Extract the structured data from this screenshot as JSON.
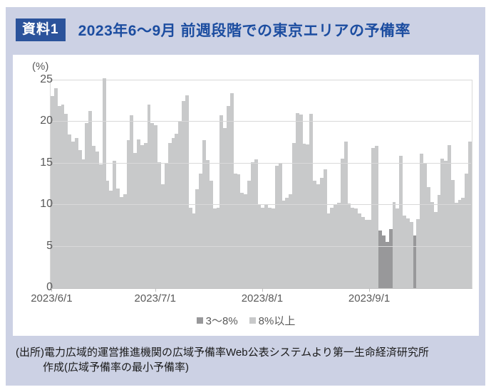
{
  "header": {
    "badge": "資料1",
    "title": "2023年6～9月 前週段階での東京エリアの予備率"
  },
  "chart_data": {
    "type": "bar",
    "title": "2023年6～9月 前週段階での東京エリアの予備率",
    "ylabel": "(%)",
    "y_axis": {
      "unit_label": "(%)",
      "ticks": [
        0,
        5,
        10,
        15,
        20,
        25
      ],
      "min": 0,
      "max": 25
    },
    "x_axis": {
      "tick_labels": [
        "2023/6/1",
        "2023/7/1",
        "2023/8/1",
        "2023/9/1"
      ],
      "tick_day_indices": [
        0,
        30,
        61,
        92
      ]
    },
    "legend": [
      {
        "label": "3～8%",
        "color": "#98989a"
      },
      {
        "label": "8%以上",
        "color": "#c8c9ca"
      }
    ],
    "grid": true,
    "dates": [
      "2023/6/1",
      "2023/6/2",
      "2023/6/3",
      "2023/6/4",
      "2023/6/5",
      "2023/6/6",
      "2023/6/7",
      "2023/6/8",
      "2023/6/9",
      "2023/6/10",
      "2023/6/11",
      "2023/6/12",
      "2023/6/13",
      "2023/6/14",
      "2023/6/15",
      "2023/6/16",
      "2023/6/17",
      "2023/6/18",
      "2023/6/19",
      "2023/6/20",
      "2023/6/21",
      "2023/6/22",
      "2023/6/23",
      "2023/6/24",
      "2023/6/25",
      "2023/6/26",
      "2023/6/27",
      "2023/6/28",
      "2023/6/29",
      "2023/6/30",
      "2023/7/1",
      "2023/7/2",
      "2023/7/3",
      "2023/7/4",
      "2023/7/5",
      "2023/7/6",
      "2023/7/7",
      "2023/7/8",
      "2023/7/9",
      "2023/7/10",
      "2023/7/11",
      "2023/7/12",
      "2023/7/13",
      "2023/7/14",
      "2023/7/15",
      "2023/7/16",
      "2023/7/17",
      "2023/7/18",
      "2023/7/19",
      "2023/7/20",
      "2023/7/21",
      "2023/7/22",
      "2023/7/23",
      "2023/7/24",
      "2023/7/25",
      "2023/7/26",
      "2023/7/27",
      "2023/7/28",
      "2023/7/29",
      "2023/7/30",
      "2023/7/31",
      "2023/8/1",
      "2023/8/2",
      "2023/8/3",
      "2023/8/4",
      "2023/8/5",
      "2023/8/6",
      "2023/8/7",
      "2023/8/8",
      "2023/8/9",
      "2023/8/10",
      "2023/8/11",
      "2023/8/12",
      "2023/8/13",
      "2023/8/14",
      "2023/8/15",
      "2023/8/16",
      "2023/8/17",
      "2023/8/18",
      "2023/8/19",
      "2023/8/20",
      "2023/8/21",
      "2023/8/22",
      "2023/8/23",
      "2023/8/24",
      "2023/8/25",
      "2023/8/26",
      "2023/8/27",
      "2023/8/28",
      "2023/8/29",
      "2023/8/30",
      "2023/8/31",
      "2023/9/1",
      "2023/9/2",
      "2023/9/3",
      "2023/9/4",
      "2023/9/5",
      "2023/9/6",
      "2023/9/7",
      "2023/9/8",
      "2023/9/9",
      "2023/9/10",
      "2023/9/11",
      "2023/9/12",
      "2023/9/13",
      "2023/9/14",
      "2023/9/15",
      "2023/9/16",
      "2023/9/17",
      "2023/9/18",
      "2023/9/19",
      "2023/9/20",
      "2023/9/21",
      "2023/9/22",
      "2023/9/23",
      "2023/9/24",
      "2023/9/25",
      "2023/9/26",
      "2023/9/27",
      "2023/9/28",
      "2023/9/29",
      "2023/9/30"
    ],
    "values": [
      23.1,
      24.1,
      21.9,
      22.1,
      21.0,
      18.5,
      17.6,
      18.1,
      16.6,
      15.5,
      19.9,
      21.3,
      17.1,
      16.4,
      14.9,
      25.3,
      12.9,
      11.7,
      15.3,
      12.0,
      11.0,
      11.3,
      17.8,
      20.8,
      16.3,
      17.9,
      17.2,
      17.5,
      22.1,
      19.9,
      19.6,
      15.2,
      12.5,
      15.1,
      17.5,
      18.1,
      18.6,
      20.1,
      22.5,
      23.2,
      9.7,
      9.0,
      11.9,
      13.8,
      17.8,
      15.4,
      12.9,
      9.6,
      9.7,
      20.8,
      19.3,
      21.9,
      23.5,
      13.8,
      13.7,
      11.5,
      11.3,
      12.9,
      15.2,
      15.5,
      10.0,
      9.7,
      10.0,
      9.7,
      9.6,
      14.7,
      15.0,
      10.5,
      10.9,
      11.3,
      17.5,
      21.1,
      20.9,
      17.4,
      17.3,
      21.0,
      12.9,
      12.5,
      13.3,
      14.3,
      9.0,
      9.7,
      10.0,
      10.3,
      15.6,
      17.6,
      10.2,
      9.7,
      9.6,
      9.0,
      8.6,
      8.2,
      8.2,
      16.9,
      17.1,
      6.9,
      6.3,
      5.6,
      7.1,
      10.4,
      9.6,
      15.9,
      8.7,
      8.4,
      8.0,
      6.3,
      8.3,
      16.2,
      15.0,
      12.2,
      10.4,
      9.2,
      11.2,
      15.6,
      15.3,
      17.2,
      13.0,
      10.3,
      10.6,
      10.9,
      13.8,
      17.6
    ],
    "low_category_indices": [
      95,
      96,
      97,
      98,
      105
    ],
    "category_names": {
      "low": "3～8%",
      "high": "8%以上"
    }
  },
  "footer": {
    "line1": "(出所)電力広域的運営推進機関の広域予備率Web公表システムより第一生命経済研究所",
    "line2": "作成(広域予備率の最小予備率)"
  },
  "colors": {
    "card_bg": "#ccd1e4",
    "badge_bg": "#2b539b",
    "title_text": "#1c4da0",
    "bar_low": "#98989a",
    "bar_high": "#c8c9ca",
    "gridline": "#d9d9d9",
    "axis_text": "#595959"
  }
}
